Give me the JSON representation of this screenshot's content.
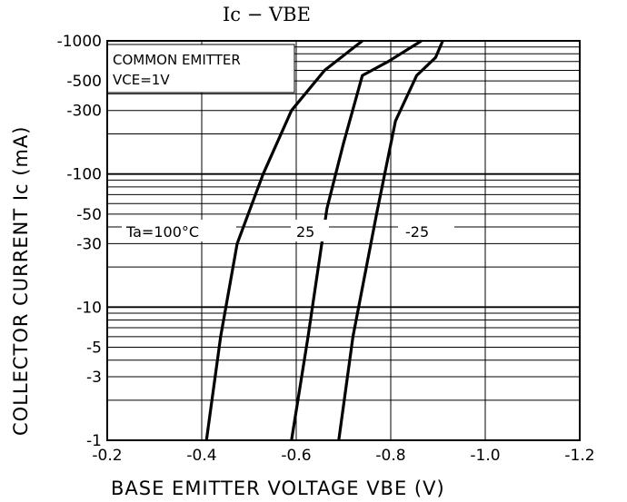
{
  "chart_data": {
    "type": "line",
    "title": "Ic  −  VBE",
    "xlabel": "BASE EMITTER VOLTAGE  VBE (V)",
    "ylabel": "COLLECTOR CURRENT  Ic (mA)",
    "x_scale": "linear",
    "y_scale": "log",
    "xlim": [
      -0.2,
      -1.2
    ],
    "ylim": [
      -1,
      -1000
    ],
    "x_ticks": [
      "-0.2",
      "-0.4",
      "-0.6",
      "-0.8",
      "-1.0",
      "-1.2"
    ],
    "x_tick_values": [
      -0.2,
      -0.4,
      -0.6,
      -0.8,
      -1.0,
      -1.2
    ],
    "y_ticks": [
      "-1000",
      "-500",
      "-300",
      "-100",
      "-50",
      "-30",
      "-10",
      "-5",
      "-3",
      "-1"
    ],
    "y_tick_values": [
      -1000,
      -500,
      -300,
      -100,
      -50,
      -30,
      -10,
      -5,
      -3,
      -1
    ],
    "grid": true,
    "annotations": {
      "condition_line1": "COMMON EMITTER",
      "condition_line2": "VCE=1V"
    },
    "series": [
      {
        "name": "Ta=100°C",
        "x": [
          -0.41,
          -0.44,
          -0.475,
          -0.53,
          -0.59,
          -0.66,
          -0.74
        ],
        "y": [
          -1,
          -6,
          -30,
          -100,
          -300,
          -600,
          -1000
        ]
      },
      {
        "name": "25",
        "x": [
          -0.59,
          -0.625,
          -0.665,
          -0.7,
          -0.74,
          -0.795,
          -0.865
        ],
        "y": [
          -1,
          -6,
          -55,
          -170,
          -550,
          -700,
          -1000
        ]
      },
      {
        "name": "-25",
        "x": [
          -0.69,
          -0.72,
          -0.77,
          -0.81,
          -0.855,
          -0.895,
          -0.91
        ],
        "y": [
          -1,
          -6,
          -50,
          -250,
          -550,
          -750,
          -1000
        ]
      }
    ]
  }
}
